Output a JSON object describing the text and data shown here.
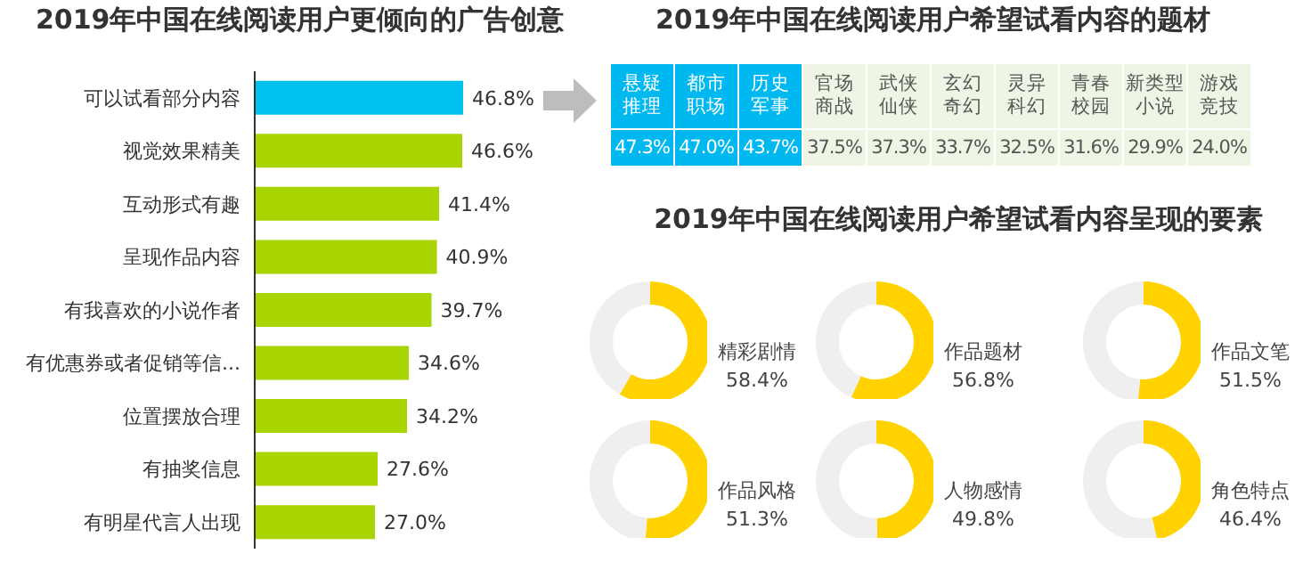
{
  "chart_data": [
    {
      "type": "bar",
      "orientation": "horizontal",
      "title": "2019年中国在线阅读用户更倾向的广告创意",
      "categories": [
        "可以试看部分内容",
        "视觉效果精美",
        "互动形式有趣",
        "呈现作品内容",
        "有我喜欢的小说作者",
        "有优惠券或者促销等信...",
        "位置摆放合理",
        "有抽奖信息",
        "有明星代言人出现"
      ],
      "values": [
        46.8,
        46.6,
        41.4,
        40.9,
        39.7,
        34.6,
        34.2,
        27.6,
        27.0
      ],
      "colors": [
        "#00c0f0",
        "#a8d400",
        "#a8d400",
        "#a8d400",
        "#a8d400",
        "#a8d400",
        "#a8d400",
        "#a8d400",
        "#a8d400"
      ],
      "value_labels": [
        "46.8%",
        "46.6%",
        "41.4%",
        "40.9%",
        "39.7%",
        "34.6%",
        "34.2%",
        "27.6%",
        "27.0%"
      ]
    },
    {
      "type": "other",
      "title": "2019年中国在线阅读用户希望试看内容的题材",
      "categories": [
        "悬疑推理",
        "都市职场",
        "历史军事",
        "官场商战",
        "武侠仙侠",
        "玄幻奇幻",
        "灵异科幻",
        "青春校园",
        "新类型小说",
        "游戏竞技"
      ],
      "values": [
        47.3,
        47.0,
        43.7,
        37.5,
        37.3,
        33.7,
        32.5,
        31.6,
        29.9,
        24.0
      ],
      "colors": [
        "#00b8f0",
        "#00b8f0",
        "#00b8f0",
        "#eef5e4",
        "#eef5e4",
        "#eef5e4",
        "#eef5e4",
        "#eef5e4",
        "#eef5e4",
        "#eef5e4"
      ],
      "value_labels": [
        "47.3%",
        "47.0%",
        "43.7%",
        "37.5%",
        "37.3%",
        "33.7%",
        "32.5%",
        "31.6%",
        "29.9%",
        "24.0%"
      ]
    },
    {
      "type": "donut",
      "title": "2019年中国在线阅读用户希望试看内容呈现的要素",
      "categories": [
        "精彩剧情",
        null
      ],
      "values": [
        58.4,
        41.6
      ],
      "colors": [
        "#ffd200",
        "#efefef"
      ],
      "value_labels": [
        "58.4%",
        null
      ]
    },
    {
      "type": "donut",
      "categories": [
        "作品题材",
        null
      ],
      "values": [
        56.8,
        43.2
      ],
      "colors": [
        "#ffd200",
        "#efefef"
      ],
      "value_labels": [
        "56.8%",
        null
      ]
    },
    {
      "type": "donut",
      "categories": [
        "作品文笔",
        null
      ],
      "values": [
        51.5,
        48.5
      ],
      "colors": [
        "#ffd200",
        "#efefef"
      ],
      "value_labels": [
        "51.5%",
        null
      ]
    },
    {
      "type": "donut",
      "categories": [
        "作品风格",
        null
      ],
      "values": [
        51.3,
        48.7
      ],
      "colors": [
        "#ffd200",
        "#efefef"
      ],
      "value_labels": [
        "51.3%",
        null
      ]
    },
    {
      "type": "donut",
      "categories": [
        "人物感情",
        null
      ],
      "values": [
        49.8,
        50.2
      ],
      "colors": [
        "#ffd200",
        "#efefef"
      ],
      "value_labels": [
        "49.8%",
        null
      ]
    },
    {
      "type": "donut",
      "categories": [
        "角色特点",
        null
      ],
      "values": [
        46.4,
        53.6
      ],
      "colors": [
        "#ffd200",
        "#efefef"
      ],
      "value_labels": [
        "46.4%",
        null
      ]
    }
  ]
}
